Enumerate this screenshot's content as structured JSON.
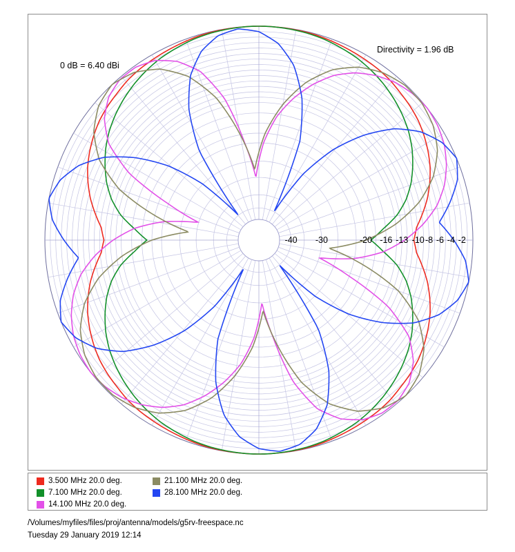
{
  "chart_data": {
    "type": "polar",
    "title": "",
    "annotations": {
      "reference": "0 dB = 6.40 dBi",
      "directivity": "Directivity = 1.96 dB"
    },
    "radial_tick_labels": [
      "-40",
      "-30",
      "-20",
      "-16",
      "-13",
      "-10",
      "-8",
      "-6",
      "-4",
      "-2"
    ],
    "radial_range_db": [
      -50,
      0
    ],
    "grid": true,
    "legend_position": "bottom",
    "series": [
      {
        "name": "3.500 MHz 20.0 deg.",
        "color": "#ee2a1f",
        "gain_db": [
          -10.8,
          -10.2,
          -8.8,
          -7.4,
          -6.2,
          -5.1,
          -4.2,
          -3.4,
          -2.7,
          -2.2,
          -1.8,
          -1.3,
          -1.0,
          -0.8,
          -0.6,
          -0.4,
          -0.2,
          -0.1,
          -0.05,
          0.0,
          0.0,
          -0.05,
          -0.1,
          -0.2,
          -0.4,
          -0.6,
          -0.8,
          -1.0,
          -1.3,
          -1.8,
          -2.2,
          -2.7,
          -3.4,
          -4.2,
          -5.1,
          -6.2,
          -7.4,
          -8.8,
          -10.2,
          -10.8,
          -10.2,
          -8.8,
          -7.4,
          -6.2,
          -5.1,
          -4.2,
          -3.4,
          -2.7,
          -2.2,
          -1.8,
          -1.3,
          -1.0,
          -0.8,
          -0.6,
          -0.4,
          -0.2,
          -0.1,
          -0.05,
          0.0,
          0.0,
          -0.05,
          -0.1,
          -0.2,
          -0.4,
          -0.6,
          -0.8,
          -1.0,
          -1.3,
          -1.8,
          -2.2,
          -2.7,
          -3.4,
          -4.2,
          -5.1,
          -6.2,
          -7.4,
          -8.8,
          -10.2
        ]
      },
      {
        "name": "7.100 MHz 20.0 deg.",
        "color": "#12902a",
        "gain_db": [
          -19.0,
          -16.5,
          -13.5,
          -11.2,
          -9.4,
          -7.9,
          -6.5,
          -5.3,
          -4.3,
          -3.4,
          -2.6,
          -1.9,
          -1.3,
          -0.9,
          -0.5,
          -0.25,
          -0.1,
          0.0,
          0.0,
          -0.1,
          -0.25,
          -0.5,
          -0.9,
          -1.3,
          -1.9,
          -2.6,
          -3.4,
          -4.3,
          -5.3,
          -6.5,
          -7.9,
          -9.4,
          -11.2,
          -13.5,
          -16.5,
          -19.0,
          -16.5,
          -13.5,
          -11.2,
          -9.4,
          -7.9,
          -6.5,
          -5.3,
          -4.3,
          -3.4,
          -2.6,
          -1.9,
          -1.3,
          -0.9,
          -0.5,
          -0.25,
          -0.1,
          0.0,
          0.0,
          -0.1,
          -0.25,
          -0.5,
          -0.9,
          -1.3,
          -1.9,
          -2.6,
          -3.4,
          -4.3,
          -5.3,
          -6.5,
          -7.9,
          -9.4,
          -11.2,
          -13.5,
          -16.5
        ]
      },
      {
        "name": "14.100 MHz 20.0 deg.",
        "color": "#e250e8",
        "gain_db": [
          -12.5,
          -9.0,
          -6.0,
          -3.8,
          -2.2,
          -1.0,
          -0.3,
          0.0,
          -0.3,
          -1.0,
          -2.2,
          -3.8,
          -6.0,
          -9.0,
          -12.5,
          -16.5,
          -22.0,
          -30.0,
          -22.0,
          -12.5,
          -6.5,
          -3.2,
          -1.2,
          -0.3,
          -0.3,
          -1.2,
          -3.2,
          -6.5,
          -12.5,
          -22.0,
          -30.0,
          -22.0,
          -16.5,
          -12.5,
          -9.0,
          -6.0,
          -3.8,
          -2.2,
          -1.0,
          -0.3,
          0.0,
          -0.3,
          -1.0,
          -2.2,
          -3.8,
          -6.0,
          -9.0,
          -12.5,
          -16.5,
          -22.0,
          -30.0,
          -22.0,
          -12.5,
          -6.5,
          -3.2,
          -1.2,
          -0.3,
          -0.3,
          -1.2,
          -3.2,
          -6.5,
          -12.5,
          -22.0,
          -30.0,
          -22.0,
          -16.5
        ]
      },
      {
        "name": "21.100 MHz 20.0 deg.",
        "color": "#8b8b63",
        "gain_db": [
          -20.0,
          -14.0,
          -9.0,
          -5.2,
          -2.6,
          -1.0,
          -0.2,
          -0.2,
          -1.0,
          -2.6,
          -5.2,
          -9.0,
          -14.0,
          -20.0,
          -28.0,
          -20.0,
          -12.0,
          -6.5,
          -3.0,
          -0.9,
          0.0,
          -0.9,
          -3.0,
          -6.5,
          -12.0,
          -20.0,
          -28.0,
          -20.0,
          -14.0,
          -9.0,
          -5.2,
          -2.6,
          -1.0,
          -0.2,
          -0.2,
          -1.0,
          -2.6,
          -5.2,
          -9.0,
          -14.0,
          -20.0,
          -28.0,
          -20.0,
          -12.0,
          -6.5,
          -3.0,
          -0.9,
          0.0,
          -0.9,
          -3.0,
          -6.5,
          -12.0,
          -20.0,
          -28.0
        ]
      },
      {
        "name": "28.100 MHz 20.0 deg.",
        "color": "#2346f2",
        "gain_db": [
          -3.5,
          -6.0,
          -3.5,
          -1.2,
          0.0,
          -1.2,
          -3.5,
          -7.0,
          -12.0,
          -18.0,
          -26.0,
          -40.0,
          -20.0,
          -12.0,
          -6.5,
          -3.0,
          -1.0,
          -0.3,
          -1.0,
          -3.0,
          -6.5,
          -12.0,
          -20.0,
          -40.0,
          -26.0,
          -18.0,
          -12.0,
          -7.0,
          -3.5,
          -1.2,
          0.0,
          -1.2,
          -3.5,
          -6.0,
          -3.5,
          -1.2,
          0.0,
          -1.2,
          -3.5,
          -7.0,
          -12.0,
          -18.0,
          -26.0,
          -40.0,
          -20.0,
          -12.0,
          -6.5,
          -3.0,
          -1.0,
          -0.3,
          -1.0,
          -3.0,
          -6.5,
          -12.0,
          -20.0,
          -40.0,
          -26.0,
          -18.0,
          -12.0,
          -7.0,
          -3.5,
          -1.2,
          0.0,
          -1.2
        ]
      }
    ]
  },
  "footer": {
    "path": "/Volumes/myfiles/files/proj/antenna/models/g5rv-freespace.nc",
    "timestamp": "Tuesday 29 January 2019 12:14"
  }
}
